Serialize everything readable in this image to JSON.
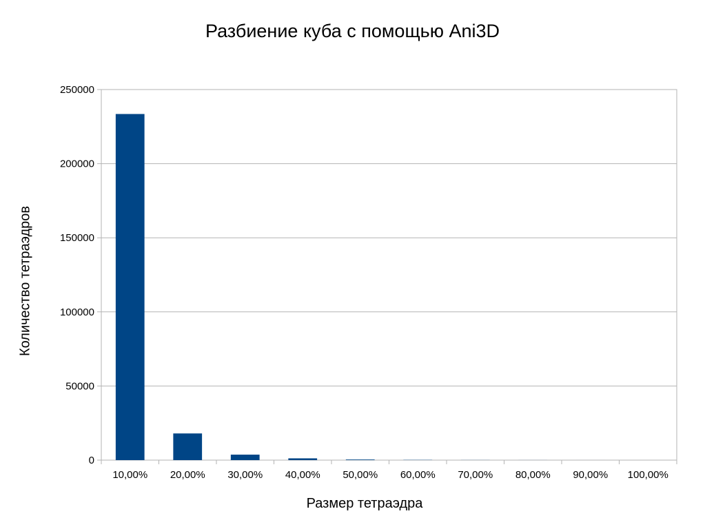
{
  "chart_data": {
    "type": "bar",
    "title": "Разбиение куба с помощью Ani3D",
    "xlabel": "Размер тетраэдра",
    "ylabel": "Количество тетраэдров",
    "categories": [
      "10,00%",
      "20,00%",
      "30,00%",
      "40,00%",
      "50,00%",
      "60,00%",
      "70,00%",
      "80,00%",
      "90,00%",
      "100,00%"
    ],
    "values": [
      233500,
      18000,
      3700,
      1200,
      400,
      150,
      60,
      30,
      10,
      5
    ],
    "ylim": [
      0,
      250000
    ],
    "yticks": [
      "0",
      "50000",
      "100000",
      "150000",
      "200000",
      "250000"
    ],
    "ytick_values": [
      0,
      50000,
      100000,
      150000,
      200000,
      250000
    ],
    "grid": true,
    "legend": "none",
    "bar_color": "#004586"
  }
}
